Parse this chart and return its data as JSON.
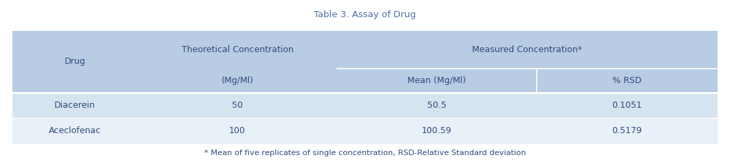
{
  "title": "Table 3. Assay of Drug",
  "title_color": "#4a6fa5",
  "title_fontsize": 9.5,
  "header_bg": "#b8cce4",
  "row_bg_1": "#d6e4f0",
  "row_bg_2": "#e8f0f8",
  "text_color": "#2e4a7a",
  "footer_text": "* Mean of five replicates of single concentration, RSD-Relative Standard deviation",
  "data": [
    [
      "Diacerein",
      "50",
      "50.5",
      "0.1051"
    ],
    [
      "Aceclofenac",
      "100",
      "100.59",
      "0.5179"
    ]
  ],
  "figsize": [
    10.61,
    2.39
  ],
  "dpi": 100
}
